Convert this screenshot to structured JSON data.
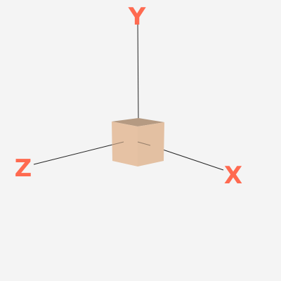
{
  "scene": {
    "background_color": "#f4f4f4",
    "axis_line_color": "#000000",
    "axis_label_color": "#ff6a50",
    "axes": {
      "x": {
        "label": "X"
      },
      "y": {
        "label": "Y"
      },
      "z": {
        "label": "Z"
      }
    },
    "cube": {
      "top_color": "#b59a82",
      "front_color": "#e6c2a4",
      "side_color": "#e3c0a2"
    }
  }
}
